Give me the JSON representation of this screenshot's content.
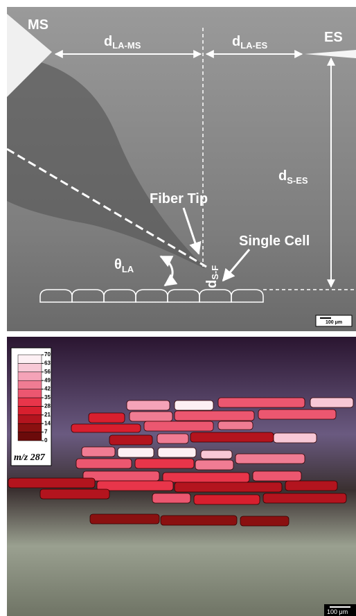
{
  "top_panel": {
    "ms": "MS",
    "es": "ES",
    "d_la_ms": {
      "main": "d",
      "sub": "LA-MS"
    },
    "d_la_es": {
      "main": "d",
      "sub": "LA-ES"
    },
    "d_s_es": {
      "main": "d",
      "sub": "S-ES"
    },
    "d_s_f": {
      "main": "d",
      "sub": "S-F"
    },
    "theta_la": {
      "main": "θ",
      "sub": "LA"
    },
    "fiber_tip": "Fiber Tip",
    "single_cell": "Single Cell",
    "scale_bar": "100 μm"
  },
  "bottom_panel": {
    "colorbar": {
      "ticks": [
        0,
        7,
        14,
        21,
        28,
        35,
        42,
        49,
        56,
        63,
        70
      ],
      "colors": [
        "#6b0a0a",
        "#8a1010",
        "#b3141e",
        "#d81f2e",
        "#e8354a",
        "#ec5770",
        "#f07c93",
        "#f5a3b8",
        "#f8c8d6",
        "#fdf0f4"
      ],
      "label": "m/z 287"
    },
    "cell_values": [
      49,
      70,
      35,
      56,
      21,
      42,
      35,
      35,
      21,
      35,
      42,
      14,
      42,
      14,
      56,
      42,
      70,
      70,
      56,
      42,
      35,
      28,
      42,
      35,
      28,
      35,
      14,
      28,
      14,
      14,
      14,
      35,
      21,
      14,
      7,
      7,
      7
    ],
    "scale_bar": "100 μm"
  }
}
